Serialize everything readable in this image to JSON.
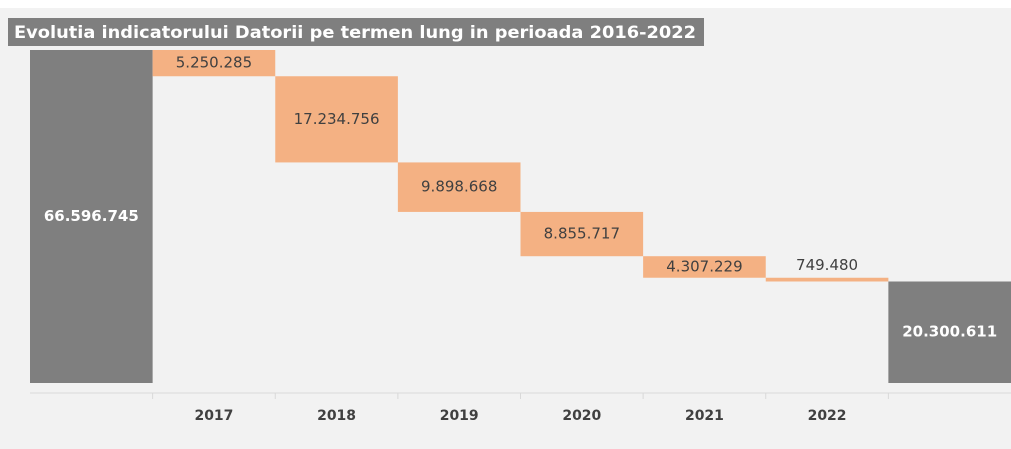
{
  "chart_data": {
    "type": "waterfall",
    "title": "Evolutia indicatorului Datorii pe termen lung in perioada 2016-2022",
    "categories": [
      null,
      "2017",
      "2018",
      "2019",
      "2020",
      "2021",
      "2022",
      null
    ],
    "values": [
      66596745,
      5250285,
      17234756,
      9898668,
      8855717,
      4307229,
      749480,
      20300611
    ],
    "value_labels": [
      "66.596.745",
      "5.250.285",
      "17.234.756",
      "9.898.668",
      "8.855.717",
      "4.307.229",
      "749.480",
      "20.300.611"
    ],
    "measure": [
      "total",
      "decrease",
      "decrease",
      "decrease",
      "decrease",
      "decrease",
      "decrease",
      "total"
    ],
    "total_color": "#7f7f7f",
    "decrease_color": "#f4b183"
  }
}
